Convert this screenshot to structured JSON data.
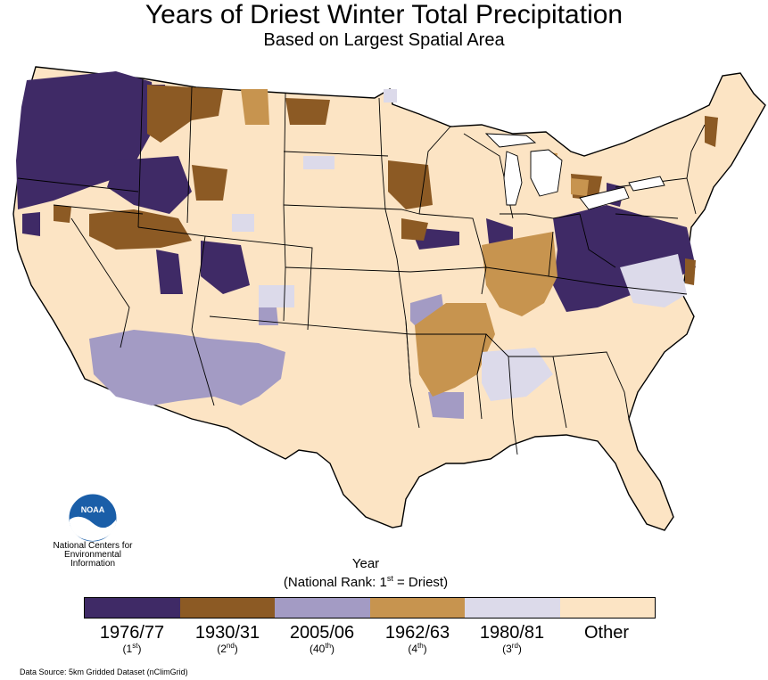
{
  "title": "Years of Driest Winter Total Precipitation",
  "subtitle": "Based on Largest Spatial Area",
  "logo": {
    "icon": "noaa-logo-icon",
    "text": "NOAA",
    "org_line1": "National Centers for",
    "org_line2": "Environmental",
    "org_line3": "Information"
  },
  "legend": {
    "title": "Year",
    "subtitle_prefix": "(National Rank: 1",
    "subtitle_sup": "st",
    "subtitle_suffix": " = Driest)",
    "items": [
      {
        "label": "1976/77",
        "rank": "1",
        "rank_sup": "st",
        "color": "#3f2a66"
      },
      {
        "label": "1930/31",
        "rank": "2",
        "rank_sup": "nd",
        "color": "#8c5a24"
      },
      {
        "label": "2005/06",
        "rank": "40",
        "rank_sup": "th",
        "color": "#a39bc4"
      },
      {
        "label": "1962/63",
        "rank": "4",
        "rank_sup": "th",
        "color": "#c7944f"
      },
      {
        "label": "1980/81",
        "rank": "3",
        "rank_sup": "rd",
        "color": "#dcdaea"
      },
      {
        "label": "Other",
        "rank": "",
        "rank_sup": "",
        "color": "#fce4c4"
      }
    ]
  },
  "source": "Data Source: 5km Gridded Dataset (nClimGrid)",
  "colors": {
    "land_other": "#fce4c4",
    "border": "#000000"
  }
}
